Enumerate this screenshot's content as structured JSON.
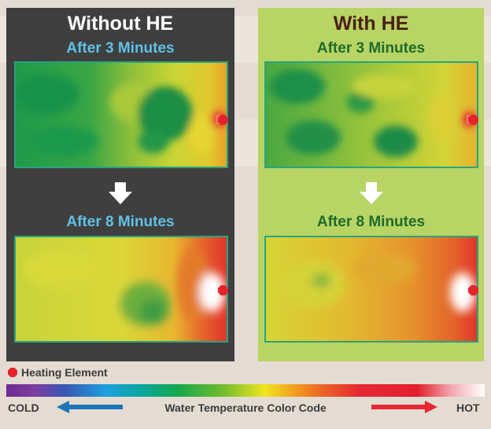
{
  "panels": [
    {
      "title": "Without HE",
      "first_caption": "After 3 Minutes",
      "second_caption": "After 8 Minutes"
    },
    {
      "title": "With HE",
      "first_caption": "After 3 Minutes",
      "second_caption": "After 8 Minutes"
    }
  ],
  "legend": {
    "heating_element": "Heating Element",
    "cold": "COLD",
    "hot": "HOT",
    "color_code": "Water Temperature Color Code"
  },
  "colors": {
    "left_panel": "#3f3f3f",
    "right_panel": "#b7d465",
    "heating_element": "#e6232b",
    "cold_arrow": "#1f74b8",
    "hot_arrow": "#e52832"
  },
  "icons": [
    "heating-element-icon",
    "down-arrow-icon",
    "left-arrow-icon",
    "right-arrow-icon"
  ]
}
